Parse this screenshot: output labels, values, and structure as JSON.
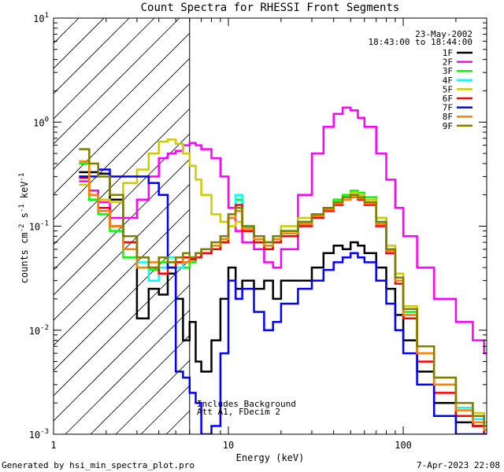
{
  "chart_data": {
    "type": "line",
    "title": "Count Spectra for RHESSI Front Segments",
    "xlabel": "Energy (keV)",
    "ylabel": "counts cm",
    "ylabel_sup1": "-2",
    "ylabel_mid": " s",
    "ylabel_sup2": "-1",
    "ylabel_end": " keV",
    "ylabel_sup3": "-1",
    "xscale": "log",
    "yscale": "log",
    "xlim": [
      1.0,
      300.0
    ],
    "ylim": [
      0.001,
      10.0
    ],
    "x_ticks": [
      {
        "value": 1,
        "label": "1"
      },
      {
        "value": 10,
        "label": "10"
      },
      {
        "value": 100,
        "label": "100"
      }
    ],
    "y_ticks": [
      {
        "value": 10,
        "base": "10",
        "exp": "1"
      },
      {
        "value": 1,
        "base": "10",
        "exp": "0"
      },
      {
        "value": 0.1,
        "base": "10",
        "exp": "-1"
      },
      {
        "value": 0.01,
        "base": "10",
        "exp": "-2"
      },
      {
        "value": 0.001,
        "base": "10",
        "exp": "-3"
      }
    ],
    "date": "23-May-2002",
    "time_range": "18:43:00 to 18:44:00",
    "hatch_limit_kev": 6.0,
    "annotation_line1": "Includes Background",
    "annotation_line2": "Att A1, FDecim 2",
    "series": [
      {
        "name": "1F",
        "color": "#000000",
        "x": [
          1.4,
          1.6,
          1.8,
          2.1,
          2.5,
          3.0,
          3.5,
          4.0,
          4.5,
          5.0,
          5.5,
          6.0,
          6.5,
          7.0,
          8.0,
          9.0,
          10.0,
          11.0,
          12.0,
          14.0,
          16.0,
          18.0,
          20.0,
          25.0,
          30.0,
          35.0,
          40.0,
          45.0,
          50.0,
          55.0,
          60.0,
          70.0,
          80.0,
          90.0,
          100.0,
          120.0,
          150.0,
          200.0,
          250.0,
          290.0
        ],
        "values": [
          0.33,
          0.33,
          0.32,
          0.18,
          0.08,
          0.013,
          0.025,
          0.022,
          0.035,
          0.02,
          0.008,
          0.012,
          0.005,
          0.004,
          0.008,
          0.02,
          0.04,
          0.025,
          0.03,
          0.025,
          0.03,
          0.02,
          0.03,
          0.03,
          0.04,
          0.055,
          0.065,
          0.06,
          0.07,
          0.065,
          0.055,
          0.04,
          0.025,
          0.014,
          0.008,
          0.004,
          0.002,
          0.0013,
          0.0012,
          0.001
        ]
      },
      {
        "name": "2F",
        "color": "#ff00ff",
        "x": [
          1.4,
          1.6,
          1.8,
          2.1,
          2.5,
          3.0,
          3.5,
          4.0,
          4.5,
          5.0,
          5.5,
          6.0,
          6.5,
          7.0,
          8.0,
          9.0,
          10.0,
          11.0,
          12.0,
          14.0,
          16.0,
          18.0,
          20.0,
          25.0,
          30.0,
          35.0,
          40.0,
          45.0,
          50.0,
          55.0,
          60.0,
          70.0,
          80.0,
          90.0,
          100.0,
          120.0,
          150.0,
          200.0,
          250.0,
          290.0
        ],
        "values": [
          0.27,
          0.22,
          0.17,
          0.12,
          0.12,
          0.18,
          0.3,
          0.45,
          0.5,
          0.53,
          0.6,
          0.63,
          0.6,
          0.55,
          0.45,
          0.3,
          0.15,
          0.09,
          0.07,
          0.06,
          0.045,
          0.04,
          0.06,
          0.2,
          0.5,
          0.9,
          1.2,
          1.38,
          1.3,
          1.1,
          0.9,
          0.5,
          0.28,
          0.15,
          0.08,
          0.04,
          0.02,
          0.012,
          0.008,
          0.006
        ]
      },
      {
        "name": "3F",
        "color": "#00ff00",
        "x": [
          1.4,
          1.6,
          1.8,
          2.1,
          2.5,
          3.0,
          3.5,
          4.0,
          4.5,
          5.0,
          5.5,
          6.0,
          6.5,
          7.0,
          8.0,
          9.0,
          10.0,
          11.0,
          12.0,
          14.0,
          16.0,
          18.0,
          20.0,
          25.0,
          30.0,
          35.0,
          40.0,
          45.0,
          50.0,
          55.0,
          60.0,
          70.0,
          80.0,
          90.0,
          100.0,
          120.0,
          150.0,
          200.0,
          250.0,
          290.0
        ],
        "values": [
          0.4,
          0.18,
          0.13,
          0.09,
          0.05,
          0.04,
          0.038,
          0.045,
          0.04,
          0.045,
          0.04,
          0.045,
          0.05,
          0.055,
          0.06,
          0.07,
          0.12,
          0.18,
          0.1,
          0.08,
          0.07,
          0.08,
          0.09,
          0.11,
          0.13,
          0.15,
          0.18,
          0.2,
          0.22,
          0.21,
          0.19,
          0.12,
          0.06,
          0.03,
          0.015,
          0.006,
          0.003,
          0.0018,
          0.0015,
          0.0012
        ]
      },
      {
        "name": "4F",
        "color": "#00ffff",
        "x": [
          1.4,
          1.6,
          1.8,
          2.1,
          2.5,
          3.0,
          3.5,
          4.0,
          4.5,
          5.0,
          5.5,
          6.0,
          6.5,
          7.0,
          8.0,
          9.0,
          10.0,
          11.0,
          12.0,
          14.0,
          16.0,
          18.0,
          20.0,
          25.0,
          30.0,
          35.0,
          40.0,
          45.0,
          50.0,
          55.0,
          60.0,
          70.0,
          80.0,
          90.0,
          100.0,
          120.0,
          150.0,
          200.0,
          250.0,
          290.0
        ],
        "values": [
          0.3,
          0.2,
          0.14,
          0.1,
          0.06,
          0.045,
          0.03,
          0.04,
          0.05,
          0.04,
          0.045,
          0.05,
          0.055,
          0.055,
          0.065,
          0.075,
          0.13,
          0.2,
          0.1,
          0.08,
          0.065,
          0.075,
          0.085,
          0.1,
          0.12,
          0.14,
          0.16,
          0.18,
          0.2,
          0.19,
          0.17,
          0.11,
          0.06,
          0.03,
          0.014,
          0.006,
          0.003,
          0.0018,
          0.0014,
          0.0012
        ]
      },
      {
        "name": "5F",
        "color": "#cccc00",
        "x": [
          1.4,
          1.6,
          1.8,
          2.1,
          2.5,
          3.0,
          3.5,
          4.0,
          4.5,
          5.0,
          5.5,
          6.0,
          6.5,
          7.0,
          8.0,
          9.0,
          10.0,
          11.0,
          12.0,
          14.0,
          16.0,
          18.0,
          20.0,
          25.0,
          30.0,
          35.0,
          40.0,
          45.0,
          50.0,
          55.0,
          60.0,
          70.0,
          80.0,
          90.0,
          100.0,
          120.0,
          150.0,
          200.0,
          250.0,
          290.0
        ],
        "values": [
          0.25,
          0.2,
          0.18,
          0.17,
          0.26,
          0.35,
          0.5,
          0.65,
          0.68,
          0.62,
          0.5,
          0.38,
          0.28,
          0.2,
          0.13,
          0.11,
          0.1,
          0.11,
          0.09,
          0.08,
          0.07,
          0.08,
          0.1,
          0.12,
          0.13,
          0.15,
          0.17,
          0.19,
          0.21,
          0.2,
          0.18,
          0.12,
          0.065,
          0.035,
          0.017,
          0.007,
          0.0035,
          0.002,
          0.0016,
          0.0013
        ]
      },
      {
        "name": "6F",
        "color": "#ff0000",
        "x": [
          1.4,
          1.6,
          1.8,
          2.1,
          2.5,
          3.0,
          3.5,
          4.0,
          4.5,
          5.0,
          5.5,
          6.0,
          6.5,
          7.0,
          8.0,
          9.0,
          10.0,
          11.0,
          12.0,
          14.0,
          16.0,
          18.0,
          20.0,
          25.0,
          30.0,
          35.0,
          40.0,
          45.0,
          50.0,
          55.0,
          60.0,
          70.0,
          80.0,
          90.0,
          100.0,
          120.0,
          150.0,
          200.0,
          250.0,
          290.0
        ],
        "values": [
          0.29,
          0.2,
          0.15,
          0.1,
          0.07,
          0.05,
          0.04,
          0.035,
          0.04,
          0.045,
          0.05,
          0.048,
          0.05,
          0.055,
          0.06,
          0.07,
          0.12,
          0.16,
          0.09,
          0.07,
          0.06,
          0.07,
          0.08,
          0.1,
          0.12,
          0.14,
          0.16,
          0.18,
          0.19,
          0.18,
          0.16,
          0.1,
          0.055,
          0.028,
          0.013,
          0.005,
          0.0025,
          0.0015,
          0.0012,
          0.001
        ]
      },
      {
        "name": "7F",
        "color": "#0000ff",
        "x": [
          1.4,
          1.6,
          1.8,
          2.1,
          2.5,
          3.0,
          3.5,
          4.0,
          4.5,
          5.0,
          5.5,
          6.0,
          6.5,
          7.0,
          8.0,
          9.0,
          10.0,
          11.0,
          12.0,
          14.0,
          16.0,
          18.0,
          20.0,
          25.0,
          30.0,
          35.0,
          40.0,
          45.0,
          50.0,
          55.0,
          60.0,
          70.0,
          80.0,
          90.0,
          100.0,
          120.0,
          150.0,
          200.0,
          250.0,
          290.0
        ],
        "values": [
          0.3,
          0.3,
          0.35,
          0.3,
          0.3,
          0.3,
          0.26,
          0.2,
          0.04,
          0.004,
          0.0035,
          0.0025,
          0.002,
          0.001,
          0.0012,
          0.006,
          0.03,
          0.02,
          0.025,
          0.015,
          0.01,
          0.012,
          0.018,
          0.025,
          0.03,
          0.038,
          0.045,
          0.05,
          0.055,
          0.05,
          0.045,
          0.03,
          0.018,
          0.01,
          0.006,
          0.003,
          0.0015,
          0.001,
          0.001,
          0.001
        ]
      },
      {
        "name": "8F",
        "color": "#ff7f00",
        "x": [
          1.4,
          1.6,
          1.8,
          2.1,
          2.5,
          3.0,
          3.5,
          4.0,
          4.5,
          5.0,
          5.5,
          6.0,
          6.5,
          7.0,
          8.0,
          9.0,
          10.0,
          11.0,
          12.0,
          14.0,
          16.0,
          18.0,
          20.0,
          25.0,
          30.0,
          35.0,
          40.0,
          45.0,
          50.0,
          55.0,
          60.0,
          70.0,
          80.0,
          90.0,
          100.0,
          120.0,
          150.0,
          200.0,
          250.0,
          290.0
        ],
        "values": [
          0.42,
          0.2,
          0.14,
          0.1,
          0.06,
          0.04,
          0.045,
          0.05,
          0.045,
          0.05,
          0.045,
          0.05,
          0.055,
          0.06,
          0.065,
          0.075,
          0.12,
          0.14,
          0.095,
          0.075,
          0.065,
          0.075,
          0.085,
          0.105,
          0.125,
          0.145,
          0.165,
          0.18,
          0.19,
          0.185,
          0.165,
          0.105,
          0.058,
          0.03,
          0.014,
          0.006,
          0.003,
          0.0017,
          0.0013,
          0.0011
        ]
      },
      {
        "name": "9F",
        "color": "#7f7f00",
        "x": [
          1.4,
          1.6,
          1.8,
          2.1,
          2.5,
          3.0,
          3.5,
          4.0,
          4.5,
          5.0,
          5.5,
          6.0,
          6.5,
          7.0,
          8.0,
          9.0,
          10.0,
          11.0,
          12.0,
          14.0,
          16.0,
          18.0,
          20.0,
          25.0,
          30.0,
          35.0,
          40.0,
          45.0,
          50.0,
          55.0,
          60.0,
          70.0,
          80.0,
          90.0,
          100.0,
          120.0,
          150.0,
          200.0,
          250.0,
          290.0
        ],
        "values": [
          0.55,
          0.4,
          0.3,
          0.2,
          0.08,
          0.05,
          0.04,
          0.05,
          0.045,
          0.05,
          0.055,
          0.05,
          0.055,
          0.06,
          0.07,
          0.08,
          0.13,
          0.15,
          0.1,
          0.08,
          0.07,
          0.08,
          0.09,
          0.11,
          0.13,
          0.15,
          0.17,
          0.19,
          0.2,
          0.19,
          0.17,
          0.11,
          0.06,
          0.032,
          0.016,
          0.007,
          0.0035,
          0.002,
          0.0015,
          0.0012
        ]
      }
    ]
  },
  "footer": {
    "generator": "Generated by hsi_min_spectra_plot.pro",
    "timestamp": "7-Apr-2023 22:08"
  }
}
